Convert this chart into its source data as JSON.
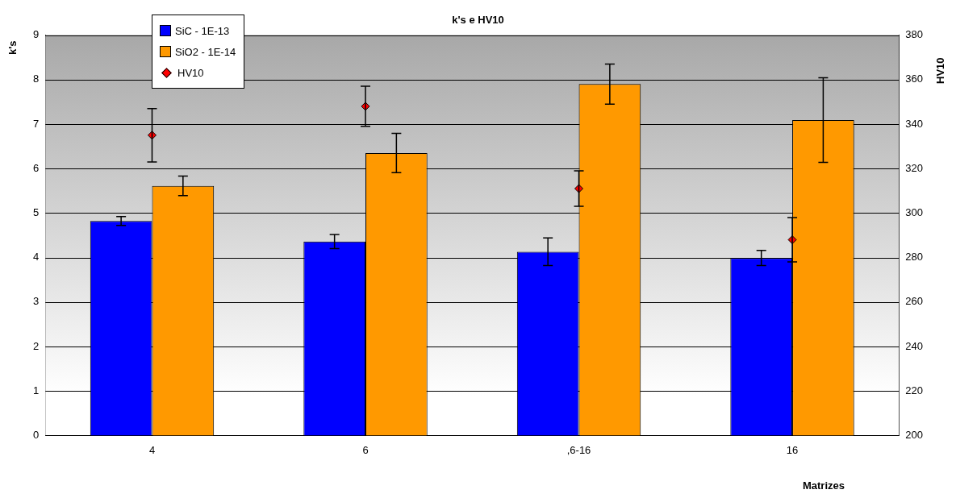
{
  "chart_data": {
    "type": "bar",
    "title": "k's e HV10",
    "xlabel": "Matrizes",
    "ylabel": "k's",
    "y2label": "HV10",
    "categories": [
      "4",
      "6",
      ",6-16",
      "16"
    ],
    "series": [
      {
        "name": "SiC - 1E-13",
        "color": "#0000ff",
        "values": [
          4.82,
          4.36,
          4.13,
          3.99
        ],
        "errors": [
          0.1,
          0.16,
          0.31,
          0.17
        ]
      },
      {
        "name": "SiO2 - 1E-14",
        "color": "#ff9900",
        "values": [
          5.61,
          6.35,
          7.9,
          7.09
        ],
        "errors": [
          0.22,
          0.44,
          0.45,
          0.95
        ]
      },
      {
        "name": "HV10",
        "type": "scatter",
        "axis": "y2",
        "color": "#ff0000",
        "marker": "diamond",
        "x": [
          "4",
          "6",
          ",6-16",
          "16"
        ],
        "values": [
          335,
          348,
          311,
          288
        ],
        "errors": [
          12,
          9,
          8,
          10
        ]
      }
    ],
    "ylim": [
      0,
      9
    ],
    "yticks": [
      0,
      1,
      2,
      3,
      4,
      5,
      6,
      7,
      8,
      9
    ],
    "y2lim": [
      200,
      380
    ],
    "y2ticks": [
      200,
      220,
      240,
      260,
      280,
      300,
      320,
      340,
      360,
      380
    ],
    "grid": "y",
    "legend": "top left"
  }
}
